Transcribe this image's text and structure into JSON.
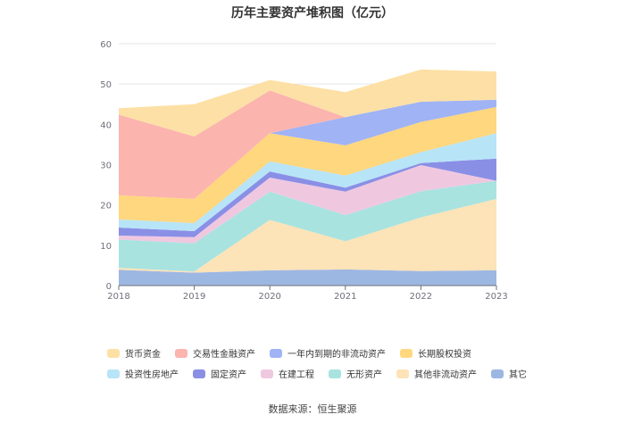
{
  "chart_data": {
    "type": "area",
    "title": "历年主要资产堆积图（亿元）",
    "source": "数据来源：恒生聚源",
    "x": [
      "2018",
      "2019",
      "2020",
      "2021",
      "2022",
      "2023"
    ],
    "y_ticks": [
      "0",
      "10",
      "20",
      "30",
      "40",
      "50",
      "60"
    ],
    "ylim": [
      0,
      60
    ],
    "grid": true,
    "legend_position": "bottom",
    "stack_order_bottom_to_top": [
      "其它",
      "其他非流动资产",
      "无形资产",
      "在建工程",
      "固定资产",
      "投资性房地产",
      "长期股权投资",
      "一年内到期的非流动资产",
      "交易性金融资产",
      "货币资金"
    ],
    "series": [
      {
        "name": "货币资金",
        "color": "#fde0a5",
        "values": [
          1.6,
          8.0,
          2.6,
          6.2,
          8.0,
          7.0
        ]
      },
      {
        "name": "交易性金融资产",
        "color": "#fbb4ae",
        "values": [
          20.0,
          15.5,
          10.6,
          0.0,
          0.0,
          0.0
        ]
      },
      {
        "name": "一年内到期的非流动资产",
        "color": "#9fb3f5",
        "values": [
          0.0,
          0.0,
          0.0,
          7.0,
          5.0,
          1.8
        ]
      },
      {
        "name": "长期股权投资",
        "color": "#ffd77e",
        "values": [
          6.0,
          6.0,
          7.0,
          7.5,
          7.5,
          6.5
        ]
      },
      {
        "name": "投资性房地产",
        "color": "#b8e4f7",
        "values": [
          2.0,
          2.0,
          2.5,
          3.0,
          2.7,
          6.3
        ]
      },
      {
        "name": "固定资产",
        "color": "#8a8fe6",
        "values": [
          2.0,
          1.5,
          1.5,
          1.0,
          0.5,
          5.5
        ]
      },
      {
        "name": "在建工程",
        "color": "#efc8e0",
        "values": [
          1.0,
          1.5,
          3.5,
          5.8,
          6.5,
          0.0
        ]
      },
      {
        "name": "无形资产",
        "color": "#a8e3e0",
        "values": [
          7.0,
          7.0,
          7.0,
          6.5,
          6.5,
          4.5
        ]
      },
      {
        "name": "其他非流动资产",
        "color": "#fde3b8",
        "values": [
          0.5,
          0.3,
          12.5,
          7.0,
          13.3,
          17.7
        ]
      },
      {
        "name": "其它",
        "color": "#9db7e3",
        "values": [
          3.9,
          3.2,
          3.8,
          4.0,
          3.6,
          3.8
        ]
      }
    ]
  }
}
